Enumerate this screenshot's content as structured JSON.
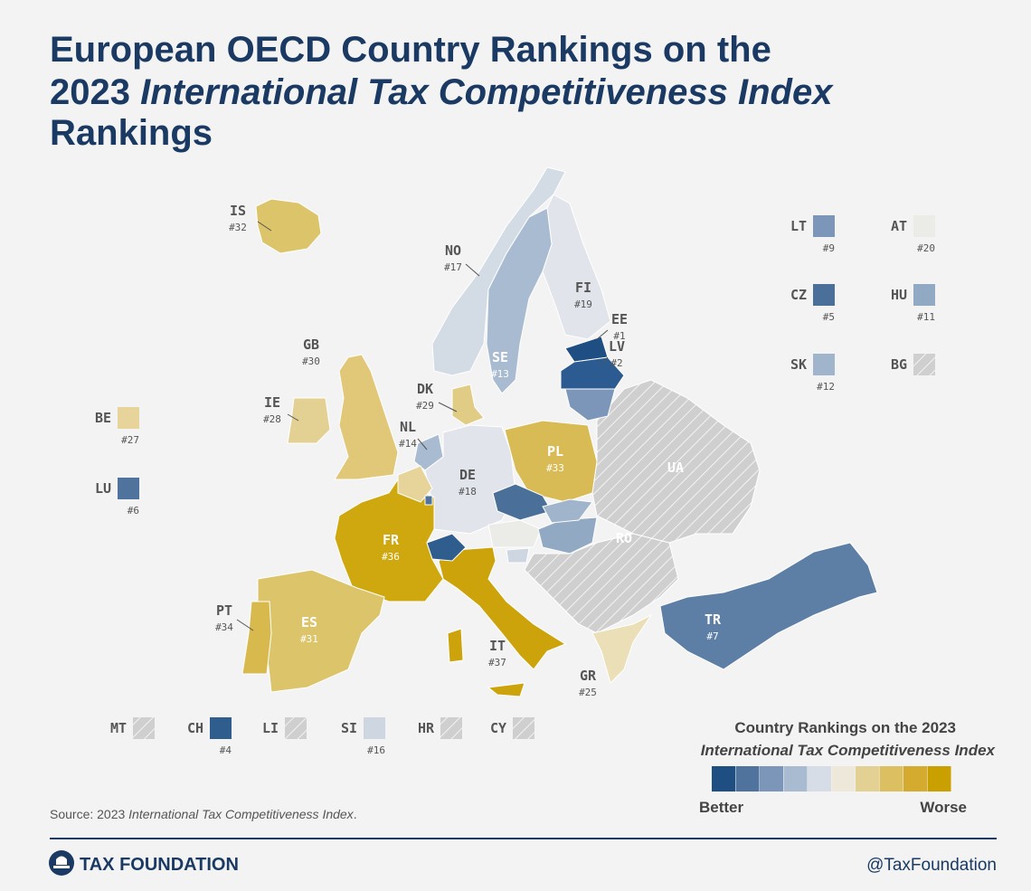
{
  "header": {
    "title_line1": "European OECD Country Rankings on the",
    "title_line2_plain": "2023 ",
    "title_line2_italic": "International Tax Competitiveness Index",
    "title_line3": "Rankings"
  },
  "map_labels": [
    {
      "code": "IS",
      "rank": "#32",
      "color": "#dcc46a"
    },
    {
      "code": "NO",
      "rank": "#17",
      "color": "#d3dbe5"
    },
    {
      "code": "FI",
      "rank": "#19",
      "color": "#e1e5eb"
    },
    {
      "code": "EE",
      "rank": "#1",
      "color": "#1f4e82"
    },
    {
      "code": "LV",
      "rank": "#2",
      "color": "#2b5b90"
    },
    {
      "code": "GB",
      "rank": "#30",
      "color": "#e0c878"
    },
    {
      "code": "IE",
      "rank": "#28",
      "color": "#e3d193"
    },
    {
      "code": "DK",
      "rank": "#29",
      "color": "#e0cc85"
    },
    {
      "code": "SE",
      "rank": "#13",
      "color": "#a8bbd0"
    },
    {
      "code": "NL",
      "rank": "#14",
      "color": "#a8bbd0"
    },
    {
      "code": "DE",
      "rank": "#18",
      "color": "#e1e5eb"
    },
    {
      "code": "PL",
      "rank": "#33",
      "color": "#d9bb55"
    },
    {
      "code": "FR",
      "rank": "#36",
      "color": "#cfa80f"
    },
    {
      "code": "IT",
      "rank": "#37",
      "color": "#cca30b"
    },
    {
      "code": "ES",
      "rank": "#31",
      "color": "#dcc46a"
    },
    {
      "code": "PT",
      "rank": "#34",
      "color": "#d8b94e"
    },
    {
      "code": "GR",
      "rank": "#25",
      "color": "#ebdfb8"
    },
    {
      "code": "TR",
      "rank": "#7",
      "color": "#5d7ea5"
    },
    {
      "code": "UA"
    },
    {
      "code": "RO"
    }
  ],
  "boxes": [
    {
      "code": "BE",
      "rank": "#27",
      "color": "#e6d49a"
    },
    {
      "code": "LU",
      "rank": "#6",
      "color": "#4f739c"
    },
    {
      "code": "LT",
      "rank": "#9",
      "color": "#7b96b8"
    },
    {
      "code": "AT",
      "rank": "#20",
      "color": "#ebebe7"
    },
    {
      "code": "CZ",
      "rank": "#5",
      "color": "#4a6f99"
    },
    {
      "code": "HU",
      "rank": "#11",
      "color": "#91a9c3"
    },
    {
      "code": "SK",
      "rank": "#12",
      "color": "#a0b4cb"
    },
    {
      "code": "BG"
    },
    {
      "code": "MT"
    },
    {
      "code": "CH",
      "rank": "#4",
      "color": "#2f5d8d"
    },
    {
      "code": "LI"
    },
    {
      "code": "SI",
      "rank": "#16",
      "color": "#cdd6e1"
    },
    {
      "code": "HR"
    },
    {
      "code": "CY"
    }
  ],
  "legend": {
    "title": "Country Rankings on the 2023",
    "subtitle": "International Tax Competitiveness Index",
    "scale": [
      "#1f4e82",
      "#4f739c",
      "#7b96b8",
      "#a8bbd0",
      "#d6dde6",
      "#ede8da",
      "#e3d193",
      "#dbbf61",
      "#d4ab2e",
      "#c9a000"
    ],
    "better": "Better",
    "worse": "Worse"
  },
  "source": {
    "prefix": "Source: 2023 ",
    "italic": "International Tax Competitiveness Index",
    "suffix": "."
  },
  "footer": {
    "brand": "TAX FOUNDATION",
    "handle": "@TaxFoundation"
  }
}
